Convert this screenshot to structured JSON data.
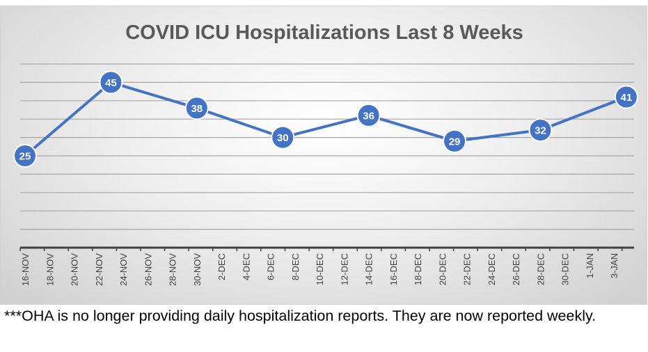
{
  "chart_data": {
    "type": "line",
    "title": "COVID ICU Hospitalizations Last 8 Weeks",
    "xlabel": "",
    "ylabel": "",
    "ylim": [
      0,
      50
    ],
    "y_gridlines_step": 5,
    "grid": true,
    "legend": "none",
    "x_tick_labels": [
      "16-NOV",
      "18-NOV",
      "20-NOV",
      "22-NOV",
      "24-NOV",
      "26-NOV",
      "28-NOV",
      "30-NOV",
      "2-DEC",
      "4-DEC",
      "6-DEC",
      "8-DEC",
      "10-DEC",
      "12-DEC",
      "14-DEC",
      "16-DEC",
      "18-DEC",
      "20-DEC",
      "22-DEC",
      "24-DEC",
      "26-DEC",
      "28-DEC",
      "30-DEC",
      "1-JAN",
      "3-JAN"
    ],
    "series": [
      {
        "name": "ICU Hospitalizations",
        "color": "#4472C4",
        "points": [
          {
            "date": "16-NOV",
            "day": 0,
            "value": 25
          },
          {
            "date": "23-NOV",
            "day": 7,
            "value": 45
          },
          {
            "date": "30-NOV",
            "day": 14,
            "value": 38
          },
          {
            "date": "7-DEC",
            "day": 21,
            "value": 30
          },
          {
            "date": "14-DEC",
            "day": 28,
            "value": 36
          },
          {
            "date": "21-DEC",
            "day": 35,
            "value": 29
          },
          {
            "date": "28-DEC",
            "day": 42,
            "value": 32
          },
          {
            "date": "4-JAN",
            "day": 49,
            "value": 41
          }
        ]
      }
    ]
  },
  "footnote": "***OHA is no longer providing daily hospitalization reports.  They are now reported weekly."
}
